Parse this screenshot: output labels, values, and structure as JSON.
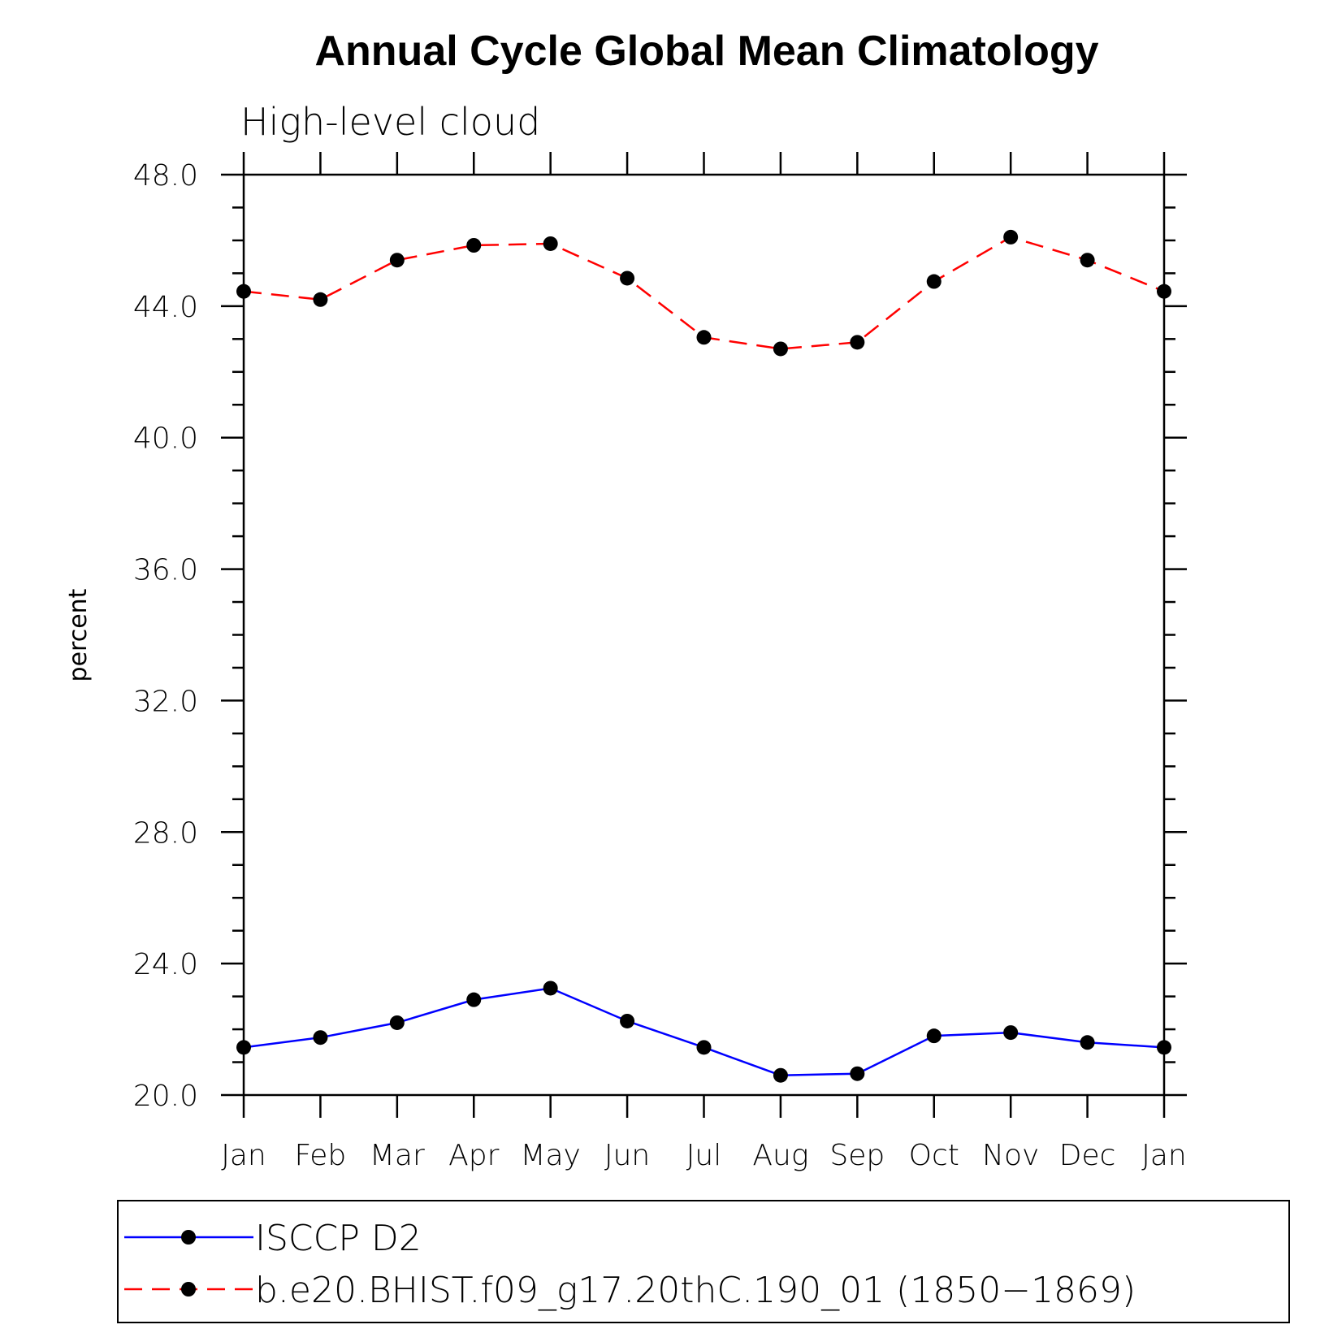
{
  "chart_data": {
    "type": "line",
    "title": "Annual Cycle Global Mean Climatology",
    "subtitle": "High-level cloud",
    "ylabel": "percent",
    "xlabel": "",
    "categories": [
      "Jan",
      "Feb",
      "Mar",
      "Apr",
      "May",
      "Jun",
      "Jul",
      "Aug",
      "Sep",
      "Oct",
      "Nov",
      "Dec",
      "Jan"
    ],
    "ylim": [
      20.0,
      48.0
    ],
    "yticks": [
      "20.0",
      "24.0",
      "28.0",
      "32.0",
      "36.0",
      "40.0",
      "44.0",
      "48.0"
    ],
    "grid": false,
    "legend_position": "bottom",
    "series": [
      {
        "name": "ISCCP D2",
        "color": "#0000ff",
        "dash": "solid",
        "marker": "filled-circle",
        "values": [
          21.45,
          21.75,
          22.2,
          22.9,
          23.25,
          22.25,
          21.45,
          20.6,
          20.65,
          21.8,
          21.9,
          21.6,
          21.45
        ]
      },
      {
        "name": "b.e20.BHIST.f09_g17.20thC.190_01 (1850−1869)",
        "color": "#ff0000",
        "dash": "dashed",
        "marker": "filled-circle",
        "values": [
          44.45,
          44.2,
          45.4,
          45.85,
          45.9,
          44.85,
          43.05,
          42.7,
          42.9,
          44.75,
          46.1,
          45.4,
          44.45
        ]
      }
    ]
  }
}
